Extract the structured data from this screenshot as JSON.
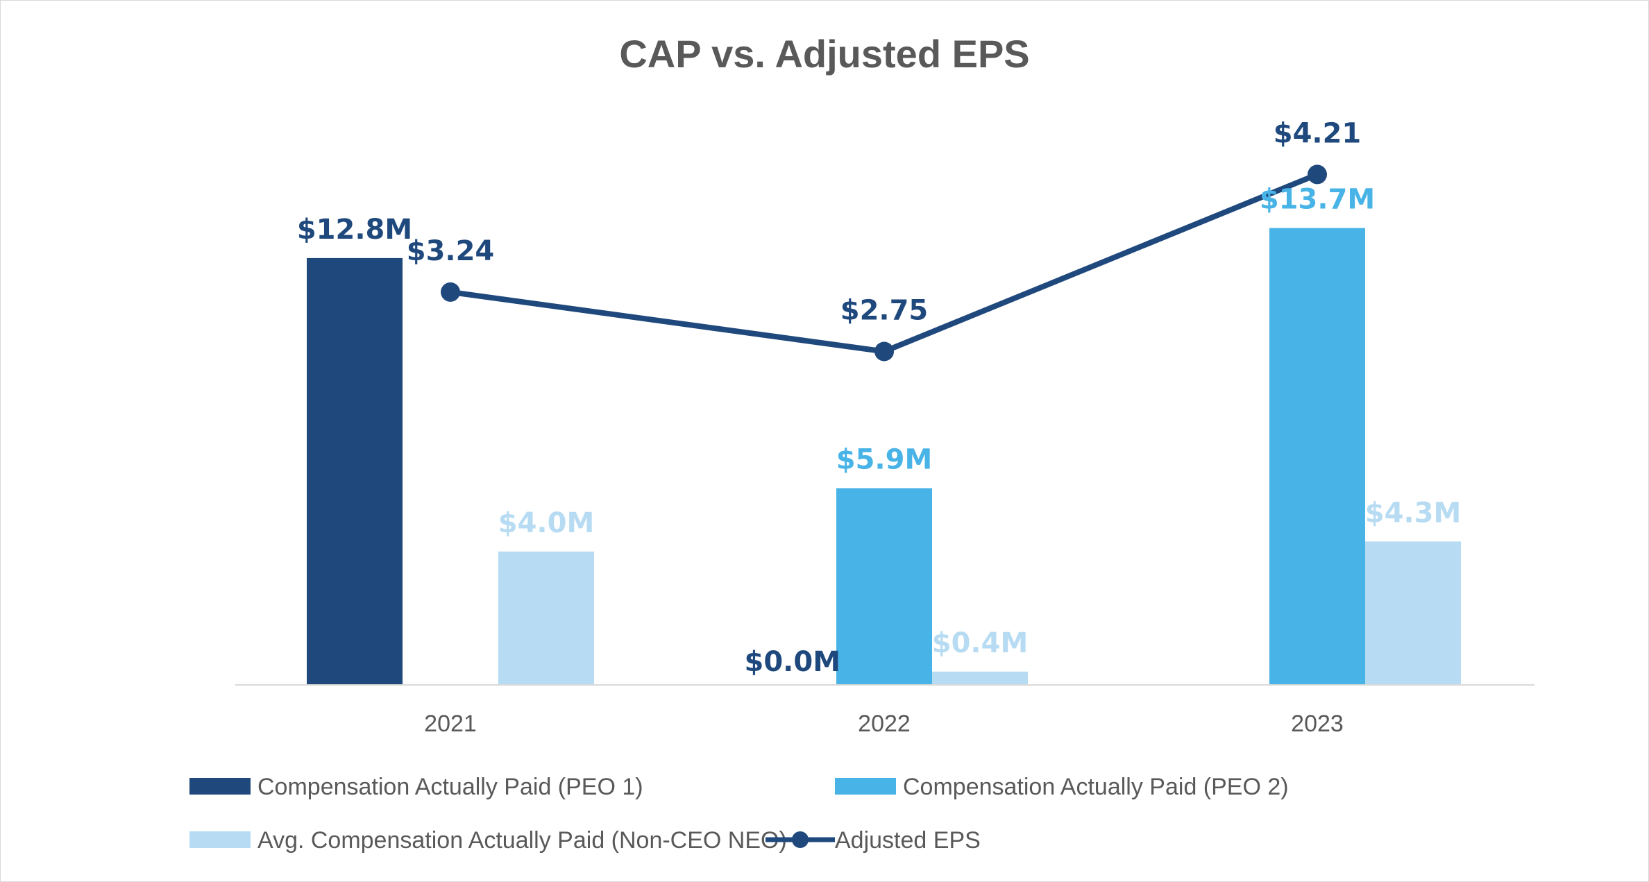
{
  "chart_data": {
    "type": "bar",
    "title": "CAP vs. Adjusted EPS",
    "categories": [
      "2021",
      "2022",
      "2023"
    ],
    "series": [
      {
        "name": "Compensation Actually Paid (PEO 1)",
        "kind": "bar",
        "color": "#1f497d",
        "values": [
          12.8,
          0.0,
          null
        ],
        "labels": [
          "$12.8M",
          "$0.0M",
          ""
        ]
      },
      {
        "name": "Compensation Actually Paid (PEO 2)",
        "kind": "bar",
        "color": "#47b3e6",
        "values": [
          null,
          5.9,
          13.7
        ],
        "labels": [
          "",
          "$5.9M",
          "$13.7M"
        ]
      },
      {
        "name": "Avg. Compensation Actually Paid (Non-CEO NEO)",
        "kind": "bar",
        "color": "#b6dbf2",
        "values": [
          4.0,
          0.4,
          4.3
        ],
        "labels": [
          "$4.0M",
          "$0.4M",
          "$4.3M"
        ]
      },
      {
        "name": "Adjusted EPS",
        "kind": "line",
        "color": "#1f497d",
        "values": [
          3.24,
          2.75,
          4.21
        ],
        "labels": [
          "$3.24",
          "$2.75",
          "$4.21"
        ]
      }
    ],
    "bar_axis_range": [
      0,
      18
    ],
    "line_axis_range": [
      0,
      5.5
    ],
    "grid": false,
    "legend_position": "bottom"
  }
}
